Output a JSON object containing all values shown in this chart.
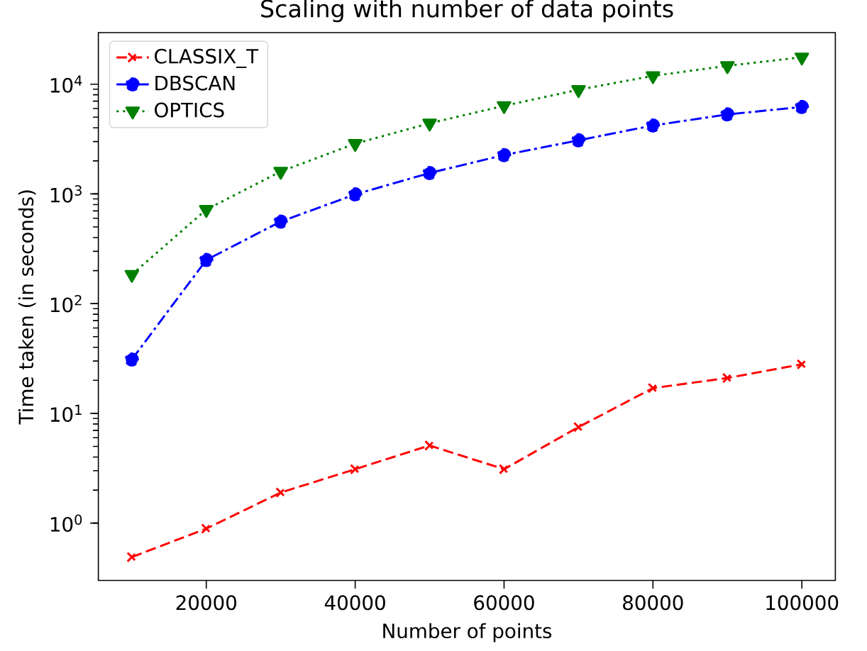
{
  "chart_data": {
    "type": "line",
    "title": "Scaling with number of data points",
    "xlabel": "Number of points",
    "ylabel": "Time taken (in seconds)",
    "x": [
      10000,
      20000,
      30000,
      40000,
      50000,
      60000,
      70000,
      80000,
      90000,
      100000
    ],
    "series": [
      {
        "name": "CLASSIX_T",
        "color": "#ff0000",
        "marker": "cross",
        "line_style": "dashed",
        "values": [
          0.49,
          0.89,
          1.9,
          3.1,
          5.1,
          3.1,
          7.5,
          17,
          21,
          28
        ]
      },
      {
        "name": "DBSCAN",
        "color": "#0000ff",
        "marker": "circle",
        "line_style": "dashdot",
        "values": [
          31,
          250,
          560,
          990,
          1550,
          2260,
          3080,
          4200,
          5300,
          6200
        ]
      },
      {
        "name": "OPTICS",
        "color": "#008000",
        "marker": "triangle",
        "line_style": "dotted",
        "values": [
          184,
          720,
          1600,
          2870,
          4400,
          6350,
          8900,
          11900,
          14700,
          17600
        ]
      }
    ],
    "log": "y",
    "grid": false,
    "legend": "top left",
    "xlim": [
      5500,
      104500
    ],
    "ylim": [
      0.3,
      29500
    ],
    "xticks": [
      20000,
      40000,
      60000,
      80000,
      100000
    ],
    "yticks": [
      {
        "value": 1,
        "label": "10$^{0}$"
      },
      {
        "value": 10,
        "label": "10$^{1}$"
      },
      {
        "value": 100,
        "label": "10$^{2}$"
      },
      {
        "value": 1000,
        "label": "10$^{3}$"
      },
      {
        "value": 10000,
        "label": "10$^{4}$"
      }
    ]
  }
}
